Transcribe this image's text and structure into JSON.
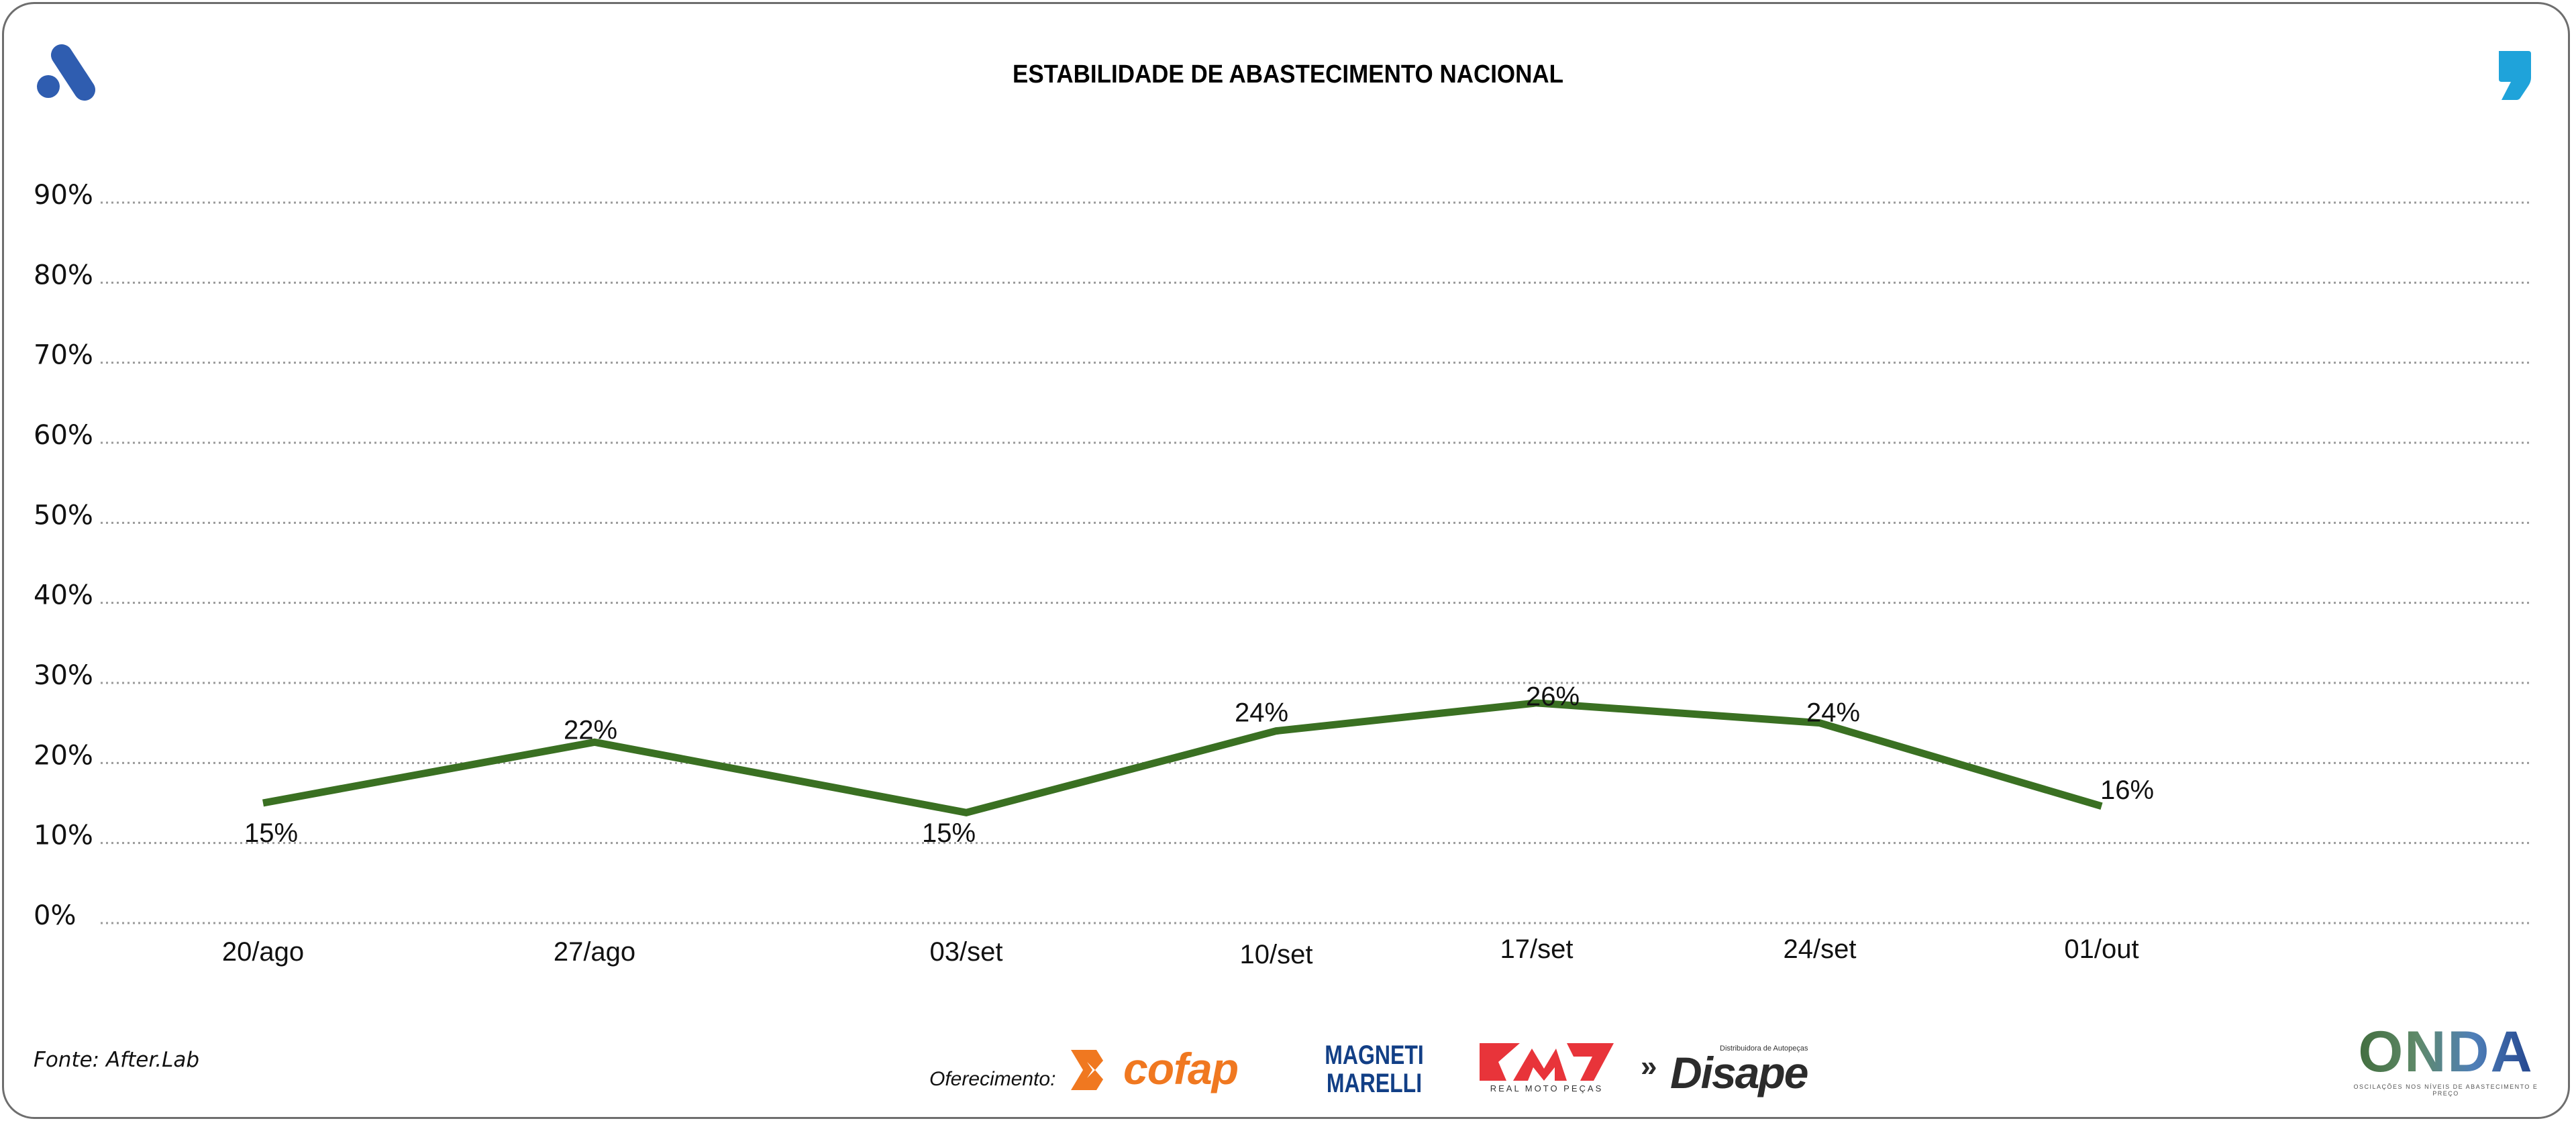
{
  "header": {
    "title": "ESTABILIDADE DE ABASTECIMENTO NACIONAL",
    "left_logo_icon": "afterlab-a-logo-icon",
    "right_logo_icon": "comma-logo-icon",
    "brand_colors": {
      "left_logo": "#2f5db0",
      "right_logo": "#1fa3da"
    }
  },
  "chart_data": {
    "type": "line",
    "title": "ESTABILIDADE DE ABASTECIMENTO NACIONAL",
    "xlabel": "",
    "ylabel": "",
    "categories": [
      "20/ago",
      "27/ago",
      "03/set",
      "10/set",
      "17/set",
      "24/set",
      "01/out"
    ],
    "series": [
      {
        "name": "Estabilidade de abastecimento",
        "color": "#3a7022",
        "values": [
          15,
          22,
          15,
          24,
          26,
          24,
          16
        ],
        "data_labels": [
          "15%",
          "22%",
          "15%",
          "24%",
          "26%",
          "24%",
          "16%"
        ]
      }
    ],
    "ylim": [
      0,
      90
    ],
    "yticks": [
      0,
      10,
      20,
      30,
      40,
      50,
      60,
      70,
      80,
      90
    ],
    "ytick_labels": [
      "0%",
      "10%",
      "20%",
      "30%",
      "40%",
      "50%",
      "60%",
      "70%",
      "80%",
      "90%"
    ],
    "grid": true,
    "grid_style": "dotted",
    "legend": "none"
  },
  "footer": {
    "source": "Fonte: After.Lab",
    "sponsor_label": "Oferecimento:",
    "sponsors": [
      {
        "name": "cofap",
        "color": "#f07820"
      },
      {
        "name": "MAGNETI MARELLI",
        "line1": "MAGNETI",
        "line2": "MARELLI",
        "color": "#123f86"
      },
      {
        "name": "RMP",
        "subtitle": "REAL MOTO PEÇAS",
        "color": "#e8343a"
      },
      {
        "name": "Disape",
        "prefix": "»",
        "subtitle": "Distribuidora de Autopeças",
        "color": "#2b2b2b"
      }
    ],
    "onda": {
      "name": "ONDA",
      "subtitle": "OSCILAÇÕES NOS NÍVEIS DE ABASTECIMENTO E PREÇO"
    }
  }
}
